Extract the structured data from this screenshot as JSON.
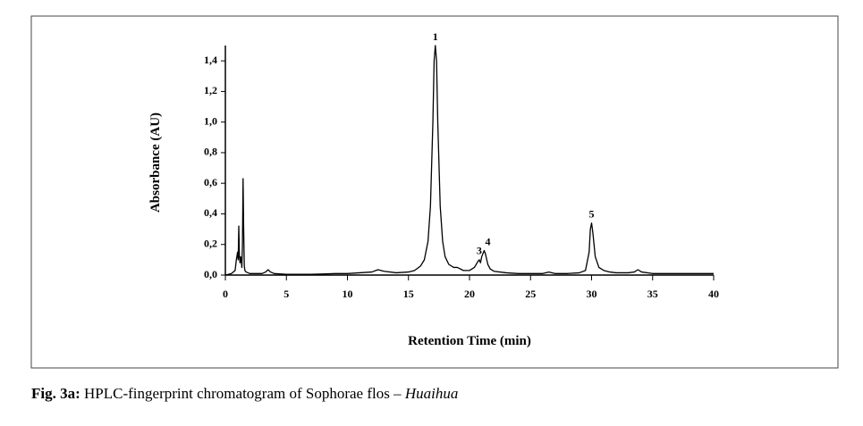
{
  "chart_data": {
    "type": "line",
    "xlabel": "Retention Time (min)",
    "ylabel": "Absorbance (AU)",
    "xlim": [
      0,
      40
    ],
    "xticks": [
      0,
      5,
      10,
      15,
      20,
      25,
      30,
      35,
      40
    ],
    "ylim": [
      0,
      1.5
    ],
    "yticks": [
      {
        "value": 0,
        "label": "0,0"
      },
      {
        "value": 0.2,
        "label": "0,2"
      },
      {
        "value": 0.4,
        "label": "0,4"
      },
      {
        "value": 0.6,
        "label": "0,6"
      },
      {
        "value": 0.8,
        "label": "0,8"
      },
      {
        "value": 1.0,
        "label": "1,0"
      },
      {
        "value": 1.2,
        "label": "1,2"
      },
      {
        "value": 1.4,
        "label": "1,4"
      }
    ],
    "grid": false,
    "series": [
      {
        "color": "#000000",
        "x": [
          0,
          0.5,
          0.8,
          0.9,
          1.0,
          1.05,
          1.1,
          1.15,
          1.2,
          1.25,
          1.3,
          1.35,
          1.4,
          1.45,
          1.5,
          1.55,
          1.6,
          1.7,
          2.0,
          2.5,
          3.0,
          3.3,
          3.5,
          3.7,
          4.0,
          5,
          6,
          7,
          8,
          9,
          10,
          11,
          12,
          12.5,
          13,
          14,
          15,
          15.5,
          16,
          16.3,
          16.6,
          16.8,
          17.0,
          17.1,
          17.2,
          17.3,
          17.4,
          17.6,
          17.8,
          18.0,
          18.3,
          18.7,
          19,
          19.5,
          20,
          20.4,
          20.7,
          20.8,
          20.9,
          21.0,
          21.2,
          21.3,
          21.5,
          21.7,
          22,
          23,
          24,
          25,
          26,
          26.5,
          27,
          28,
          29,
          29.5,
          29.8,
          29.9,
          30.0,
          30.1,
          30.3,
          30.6,
          31,
          31.5,
          32,
          33,
          33.5,
          33.8,
          34.1,
          35,
          36,
          37,
          38,
          39,
          40
        ],
        "values": [
          0.0,
          0.01,
          0.03,
          0.1,
          0.15,
          0.1,
          0.32,
          0.12,
          0.08,
          0.12,
          0.1,
          0.05,
          0.2,
          0.63,
          0.3,
          0.06,
          0.03,
          0.02,
          0.01,
          0.01,
          0.01,
          0.02,
          0.035,
          0.02,
          0.01,
          0.005,
          0.005,
          0.005,
          0.007,
          0.01,
          0.01,
          0.015,
          0.02,
          0.035,
          0.025,
          0.015,
          0.02,
          0.03,
          0.06,
          0.1,
          0.22,
          0.45,
          1.0,
          1.4,
          1.5,
          1.4,
          1.0,
          0.45,
          0.22,
          0.12,
          0.07,
          0.05,
          0.05,
          0.03,
          0.03,
          0.05,
          0.09,
          0.1,
          0.08,
          0.12,
          0.16,
          0.14,
          0.07,
          0.04,
          0.025,
          0.015,
          0.01,
          0.01,
          0.01,
          0.02,
          0.01,
          0.01,
          0.015,
          0.03,
          0.15,
          0.3,
          0.34,
          0.28,
          0.12,
          0.05,
          0.03,
          0.02,
          0.015,
          0.015,
          0.02,
          0.035,
          0.02,
          0.01,
          0.01,
          0.01,
          0.01,
          0.01,
          0.01
        ]
      }
    ],
    "annotations": [
      {
        "text": "1",
        "x": 17.2,
        "y": 1.5
      },
      {
        "text": "3",
        "x": 20.8,
        "y": 0.1
      },
      {
        "text": "4",
        "x": 21.5,
        "y": 0.16
      },
      {
        "text": "5",
        "x": 30.0,
        "y": 0.34
      }
    ],
    "caption": {
      "label": "Fig. 3a:",
      "text": "HPLC-fingerprint chromatogram of Sophorae flos – ",
      "italic": "Huaihua"
    }
  }
}
